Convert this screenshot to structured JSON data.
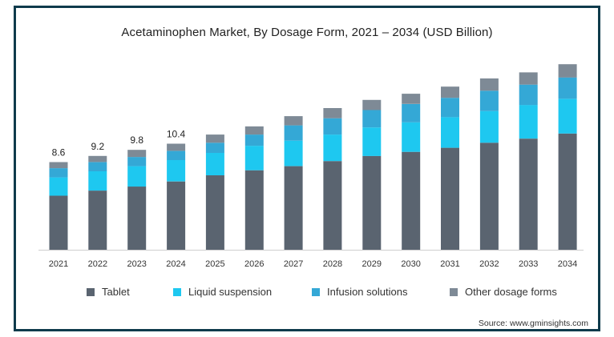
{
  "chart_data": {
    "type": "bar",
    "stacked": true,
    "title": "Acetaminophen Market, By Dosage Form, 2021 – 2034 (USD Billion)",
    "categories": [
      "2021",
      "2022",
      "2023",
      "2024",
      "2025",
      "2026",
      "2027",
      "2028",
      "2029",
      "2030",
      "2031",
      "2032",
      "2033",
      "2034"
    ],
    "totals_labels": [
      "8.6",
      "9.2",
      "9.8",
      "10.4",
      "",
      "",
      "",
      "",
      "",
      "",
      "",
      "",
      "",
      ""
    ],
    "series": [
      {
        "name": "Tablet",
        "color": "#5a6470",
        "values": [
          5.3,
          5.8,
          6.2,
          6.7,
          7.3,
          7.8,
          8.2,
          8.7,
          9.2,
          9.6,
          10.0,
          10.5,
          10.9,
          11.4
        ]
      },
      {
        "name": "Liquid suspension",
        "color": "#1ec8f0",
        "values": [
          1.8,
          1.9,
          2.0,
          2.1,
          2.2,
          2.4,
          2.5,
          2.6,
          2.8,
          2.9,
          3.0,
          3.1,
          3.3,
          3.4
        ]
      },
      {
        "name": "Infusion solutions",
        "color": "#34a8d6",
        "values": [
          0.9,
          0.9,
          0.9,
          0.9,
          1.0,
          1.1,
          1.5,
          1.6,
          1.7,
          1.8,
          1.9,
          2.0,
          2.0,
          2.1
        ]
      },
      {
        "name": "Other dosage forms",
        "color": "#7e8a96",
        "values": [
          0.6,
          0.6,
          0.7,
          0.7,
          0.8,
          0.8,
          0.9,
          1.0,
          1.0,
          1.0,
          1.1,
          1.2,
          1.2,
          1.3
        ]
      }
    ],
    "ylim": [
      0,
      19
    ],
    "xlabel": "",
    "ylabel": "",
    "grid": false,
    "legend_position": "bottom"
  },
  "source": "Source: www.gminsights.com"
}
